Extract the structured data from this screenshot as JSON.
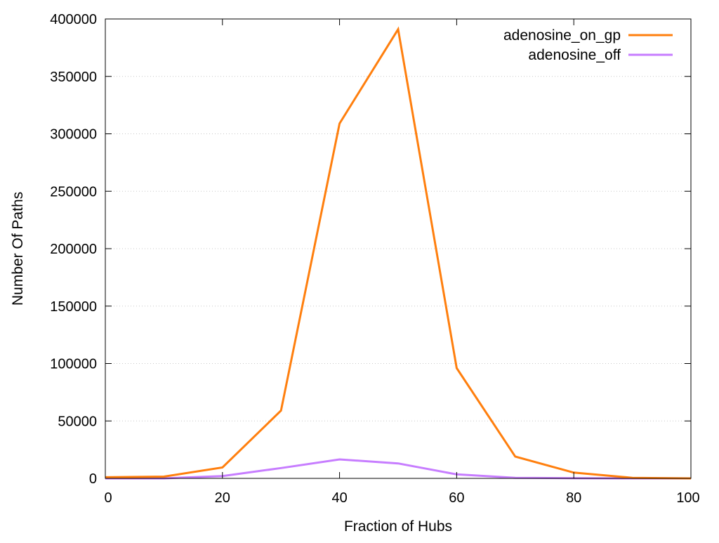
{
  "chart_data": {
    "type": "line",
    "title": "",
    "xlabel": "Fraction of Hubs",
    "ylabel": "Number Of Paths",
    "x": [
      0,
      10,
      20,
      30,
      40,
      50,
      60,
      70,
      80,
      90,
      100
    ],
    "xlim": [
      0,
      100
    ],
    "ylim": [
      0,
      400000
    ],
    "xticks": [
      0,
      20,
      40,
      60,
      80,
      100
    ],
    "yticks": [
      0,
      50000,
      100000,
      150000,
      200000,
      250000,
      300000,
      350000,
      400000
    ],
    "grid": "horizontal, dotted",
    "legend_position": "top-right",
    "series": [
      {
        "name": "adenosine_on_gp",
        "color": "#ff7f0e",
        "values": [
          1000,
          1500,
          9500,
          59000,
          309000,
          391000,
          96000,
          19000,
          5000,
          500,
          0
        ]
      },
      {
        "name": "adenosine_off",
        "color": "#c77dff",
        "values": [
          0,
          0,
          2000,
          9000,
          16500,
          13000,
          3500,
          500,
          200,
          0,
          0
        ]
      }
    ]
  }
}
